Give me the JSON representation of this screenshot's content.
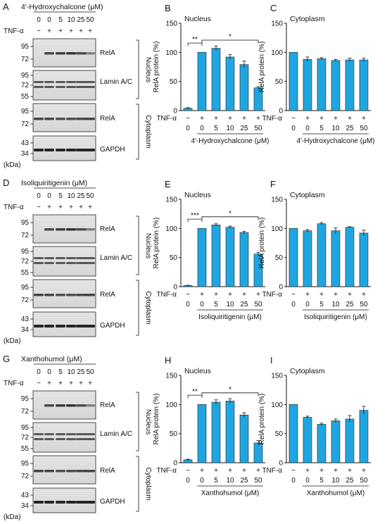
{
  "figure": {
    "panel_letters": [
      "A",
      "B",
      "C",
      "D",
      "E",
      "F",
      "G",
      "H",
      "I"
    ],
    "kda_label": "(kDa)",
    "tnf_label": "TNF-α",
    "conc_row": [
      "0",
      "0",
      "5",
      "10",
      "25",
      "50"
    ],
    "tnf_row": [
      "−",
      "+",
      "+",
      "+",
      "+",
      "+"
    ],
    "compounds": [
      "4′-Hydroxychalcone (μM)",
      "Isoliquiritigenin (μM)",
      "Xanthohumol (μM)"
    ],
    "nucleus_label": "Nucleus",
    "cytoplasm_label": "Cytoplasm",
    "blot_rows": [
      {
        "label": "RelA",
        "markers": [
          "95",
          "72"
        ]
      },
      {
        "label": "Lamin A/C",
        "markers": [
          "95",
          "72",
          "55"
        ]
      },
      {
        "label": "RelA",
        "markers": [
          "95",
          "72"
        ]
      },
      {
        "label": "GAPDH",
        "markers": [
          "43",
          "34"
        ]
      }
    ],
    "significance": [
      {
        "near": "**",
        "far": "*"
      },
      {
        "near": "***",
        "far": "*"
      },
      {
        "near": "**",
        "far": "*"
      }
    ]
  },
  "chart_data": [
    {
      "panel": "B",
      "type": "bar",
      "title": "Nucleus",
      "xlabel": "4′-Hydroxychalcone (μM)",
      "ylabel": "RelA protein (%)",
      "ylim": [
        0,
        150
      ],
      "yticks": [
        0,
        50,
        100,
        150
      ],
      "categories": [
        "0",
        "0",
        "5",
        "10",
        "25",
        "50"
      ],
      "tnf": [
        "−",
        "+",
        "+",
        "+",
        "+",
        "+"
      ],
      "values": [
        4,
        100,
        107,
        92,
        79,
        39
      ],
      "errors": [
        1,
        0,
        4,
        4,
        6,
        2
      ],
      "color": "#1fa6e0"
    },
    {
      "panel": "C",
      "type": "bar",
      "title": "Cytoplasm",
      "xlabel": "4′-Hydroxychalcone (μM)",
      "ylabel": "RelA protein (%)",
      "ylim": [
        0,
        150
      ],
      "yticks": [
        0,
        50,
        100,
        150
      ],
      "categories": [
        "0",
        "0",
        "5",
        "10",
        "25",
        "50"
      ],
      "tnf": [
        "−",
        "+",
        "+",
        "+",
        "+",
        "+"
      ],
      "values": [
        100,
        88,
        89,
        86,
        87,
        87
      ],
      "errors": [
        0,
        4,
        2,
        2,
        3,
        3
      ],
      "color": "#1fa6e0"
    },
    {
      "panel": "E",
      "type": "bar",
      "title": "Nucleus",
      "xlabel": "Isoliquiritigenin (μM)",
      "ylabel": "RelA protein (%)",
      "ylim": [
        0,
        150
      ],
      "yticks": [
        0,
        50,
        100,
        150
      ],
      "categories": [
        "0",
        "0",
        "5",
        "10",
        "25",
        "50"
      ],
      "tnf": [
        "−",
        "+",
        "+",
        "+",
        "+",
        "+"
      ],
      "values": [
        2,
        100,
        106,
        102,
        93,
        56
      ],
      "errors": [
        0.5,
        0,
        2,
        2,
        2,
        3
      ],
      "color": "#1fa6e0"
    },
    {
      "panel": "F",
      "type": "bar",
      "title": "Cytoplasm",
      "xlabel": "Isoliquiritigenin (μM)",
      "ylabel": "RelA protein (%)",
      "ylim": [
        0,
        150
      ],
      "yticks": [
        0,
        50,
        100,
        150
      ],
      "categories": [
        "0",
        "0",
        "5",
        "10",
        "25",
        "50"
      ],
      "tnf": [
        "−",
        "+",
        "+",
        "+",
        "+",
        "+"
      ],
      "values": [
        100,
        96,
        108,
        96,
        102,
        92
      ],
      "errors": [
        0,
        2,
        2,
        5,
        1,
        5
      ],
      "color": "#1fa6e0"
    },
    {
      "panel": "H",
      "type": "bar",
      "title": "Nucleus",
      "xlabel": "Xanthohumol (μM)",
      "ylabel": "RelA protein (%)",
      "ylim": [
        0,
        150
      ],
      "yticks": [
        0,
        50,
        100,
        150
      ],
      "categories": [
        "0",
        "0",
        "5",
        "10",
        "25",
        "50"
      ],
      "tnf": [
        "−",
        "+",
        "+",
        "+",
        "+",
        "+"
      ],
      "values": [
        5,
        100,
        104,
        106,
        82,
        34
      ],
      "errors": [
        1,
        0,
        4,
        4,
        4,
        4
      ],
      "color": "#1fa6e0"
    },
    {
      "panel": "I",
      "type": "bar",
      "title": "Cytoplasm",
      "xlabel": "Xanthohumol (μM)",
      "ylabel": "RelA protein (%)",
      "ylim": [
        0,
        150
      ],
      "yticks": [
        0,
        50,
        100,
        150
      ],
      "categories": [
        "0",
        "0",
        "5",
        "10",
        "25",
        "50"
      ],
      "tnf": [
        "−",
        "+",
        "+",
        "+",
        "+",
        "+"
      ],
      "values": [
        100,
        78,
        66,
        72,
        75,
        90
      ],
      "errors": [
        0,
        2,
        2,
        3,
        6,
        7
      ],
      "color": "#1fa6e0"
    }
  ]
}
